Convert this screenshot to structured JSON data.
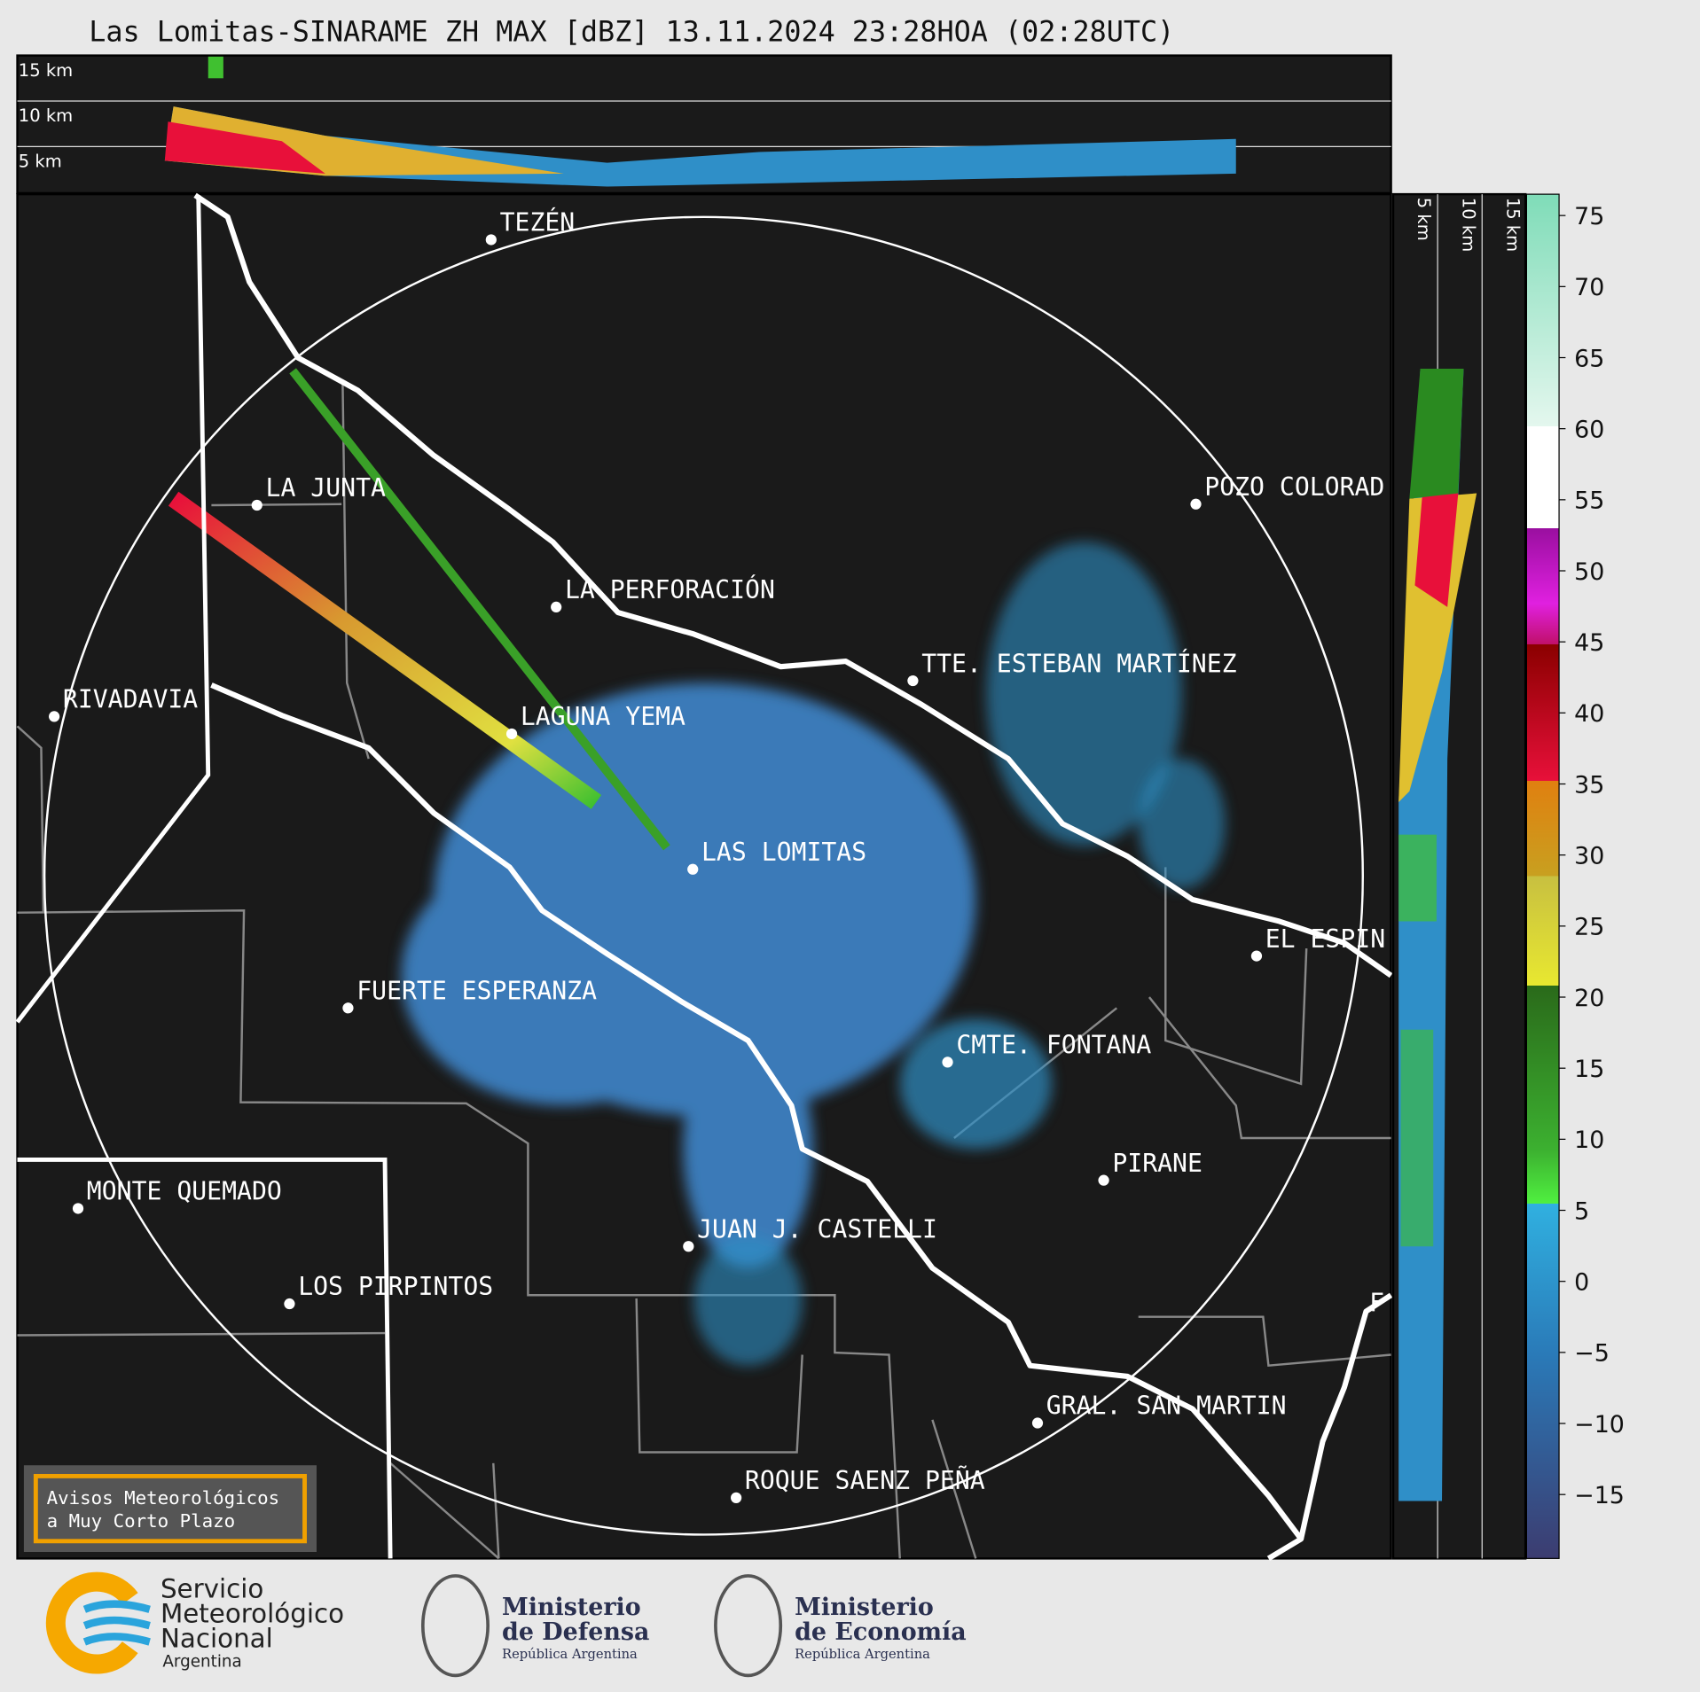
{
  "title": "Las Lomitas-SINARAME ZH MAX [dBZ] 13.11.2024 23:28HOA (02:28UTC)",
  "top_panel_labels": [
    "15 km",
    "10 km",
    "5 km"
  ],
  "side_panel_labels": [
    "5 km",
    "10 km",
    "15 km"
  ],
  "places": [
    "TEZÉN",
    "LA JUNTA",
    "LA PERFORACIÓN",
    "RIVADAVIA",
    "LAGUNA YEMA",
    "POZO COLORAD",
    "TTE. ESTEBAN MARTÍNEZ",
    "LAS LOMITAS",
    "EL ESPIN",
    "FUERTE ESPERANZA",
    "CMTE. FONTANA",
    "PIRANE",
    "MONTE QUEMADO",
    "JUAN J. CASTELLI",
    "LOS PIRPINTOS",
    "GRAL. SAN MARTIN",
    "ROQUE SAENZ PEÑA",
    "F"
  ],
  "colorbar": {
    "lim": [
      -19.5,
      76.5
    ],
    "ticks": [
      75,
      70,
      65,
      60,
      55,
      50,
      45,
      40,
      35,
      30,
      25,
      20,
      15,
      10,
      5,
      0,
      {
        "value": -5,
        "label": "−5"
      },
      {
        "value": -10,
        "label": "−10"
      },
      {
        "value": -15,
        "label": "−15"
      }
    ]
  },
  "warning_box": [
    "Avisos Meteorológicos",
    "a Muy Corto Plazo"
  ],
  "logos": {
    "smn": [
      "Servicio",
      "Meteorológico",
      "Nacional",
      "Argentina"
    ],
    "defensa": [
      "Ministerio",
      "de Defensa",
      "República Argentina"
    ],
    "economia": [
      "Ministerio",
      "de Economía",
      "República Argentina"
    ]
  }
}
